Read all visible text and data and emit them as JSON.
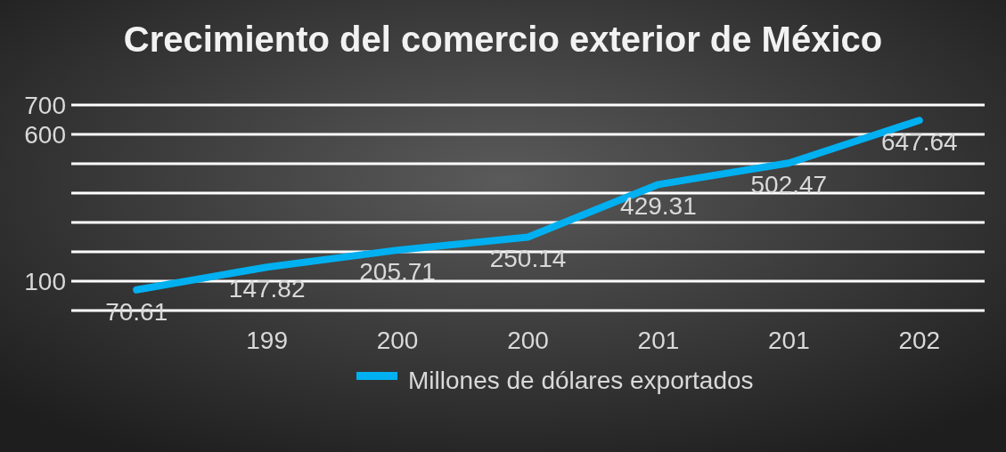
{
  "chart_data": {
    "type": "line",
    "title": "Crecimiento del comercio exterior de México",
    "categories": [
      null,
      "199",
      "200",
      "200",
      "201",
      "201",
      "202"
    ],
    "series": [
      {
        "name": "Millones de dólares exportados",
        "color": "#00b0f0",
        "values": [
          70.61,
          147.82,
          205.71,
          250.14,
          429.31,
          502.47,
          647.64
        ]
      }
    ],
    "ylim": [
      0,
      700
    ],
    "yticks": [
      {
        "value": 0,
        "label": null
      },
      {
        "value": 100,
        "label": "100"
      },
      {
        "value": 200,
        "label": null
      },
      {
        "value": 300,
        "label": null
      },
      {
        "value": 400,
        "label": null
      },
      {
        "value": 500,
        "label": null
      },
      {
        "value": 600,
        "label": "600"
      },
      {
        "value": 700,
        "label": "700"
      }
    ],
    "grid": "y",
    "legend": "bottom",
    "data_labels": true,
    "marker": "none",
    "line_style": "solid"
  }
}
